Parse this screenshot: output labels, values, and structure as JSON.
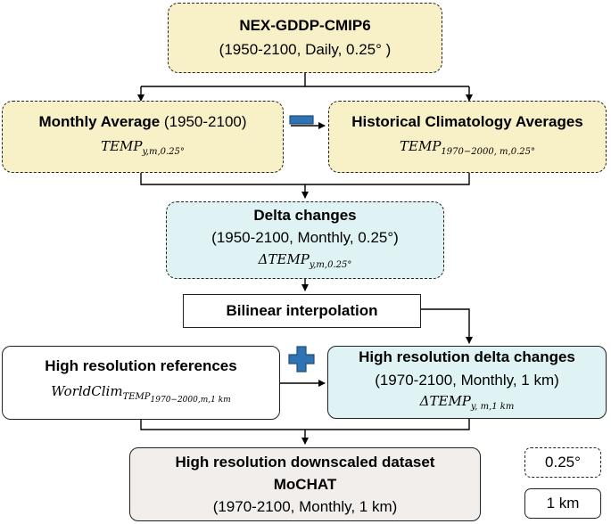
{
  "colors": {
    "source": "#f8f1c8",
    "delta": "#dff3f5",
    "final": "#f2eeec",
    "operator": "#2e74b5",
    "line": "#000000"
  },
  "source": {
    "title": "NEX-GDDP-CMIP6",
    "subtitle": "(1950-2100, Daily, 0.25° )"
  },
  "monthly": {
    "title": "Monthly Average",
    "years": " (1950-2100)",
    "var": "TEMP",
    "sub": "y,m,0.25°"
  },
  "operator_minus": "minus-icon",
  "historical": {
    "title": "Historical Climatology Averages",
    "var": "TEMP",
    "sub": "1970−2000, m,0.25°"
  },
  "delta": {
    "title": "Delta changes",
    "subtitle": "(1950-2100, Monthly, 0.25°)",
    "var": "ΔTEMP",
    "sub": "y,m,0.25°"
  },
  "bilinear": {
    "label": "Bilinear interpolation"
  },
  "reference": {
    "title": "High resolution references",
    "var": "WorldClim",
    "sub_var": "TEMP",
    "sub_sub": "1970−2000,m,1 km"
  },
  "operator_plus": "plus-icon",
  "hr_delta": {
    "title": "High resolution delta changes",
    "subtitle": "(1970-2100, Monthly, 1 km)",
    "var": "ΔTEMP",
    "sub": "y, m,1 km"
  },
  "final": {
    "title": "High resolution downscaled dataset",
    "name": "MoCHAT",
    "subtitle": "(1970-2100, Monthly, 1 km)"
  },
  "legend": {
    "dashed_label": "0.25°",
    "solid_label": "1 km"
  }
}
